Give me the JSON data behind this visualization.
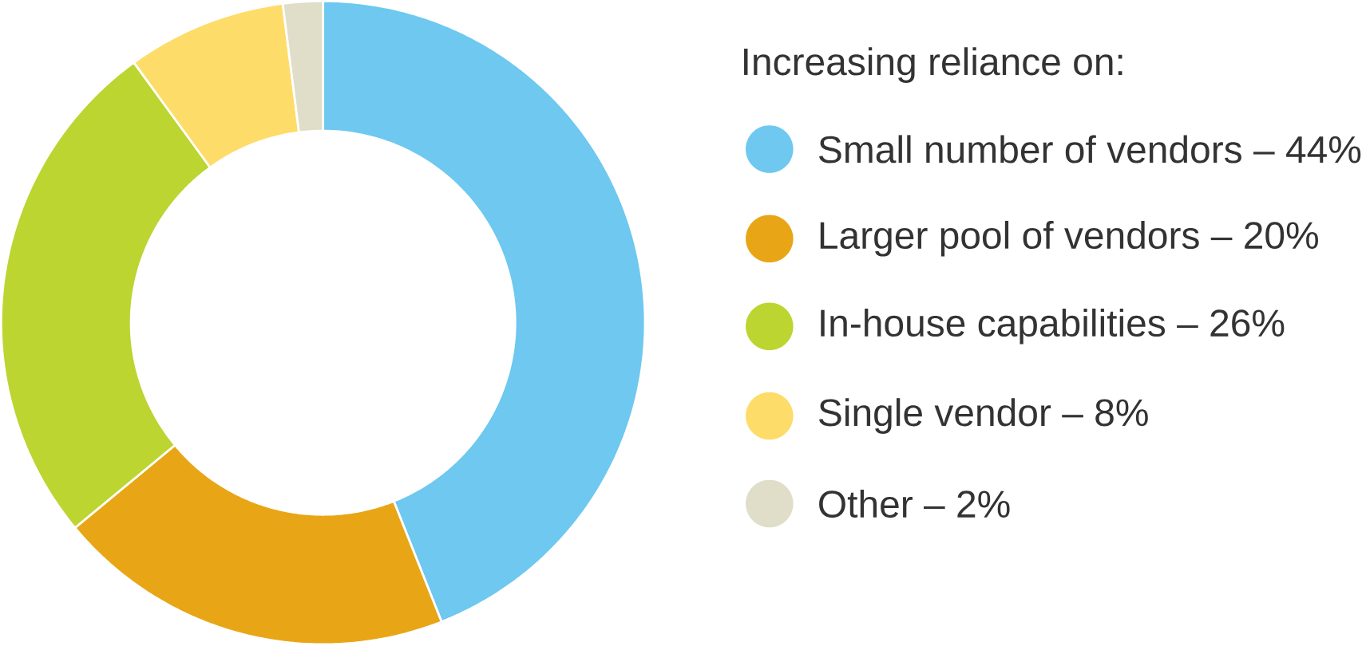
{
  "chart_data": {
    "type": "donut",
    "legend_title": "Increasing reliance on:",
    "categories": [
      "Small number of vendors – 44%",
      "Larger pool of vendors – 20%",
      "In-house capabilities – 26%",
      "Single vendor – 8%",
      "Other – 2%"
    ],
    "values": [
      44,
      20,
      26,
      8,
      2
    ],
    "colors": [
      "#6ec8ef",
      "#e8a617",
      "#bcd530",
      "#fedc6a",
      "#e0ddc8"
    ],
    "legend": "right"
  }
}
